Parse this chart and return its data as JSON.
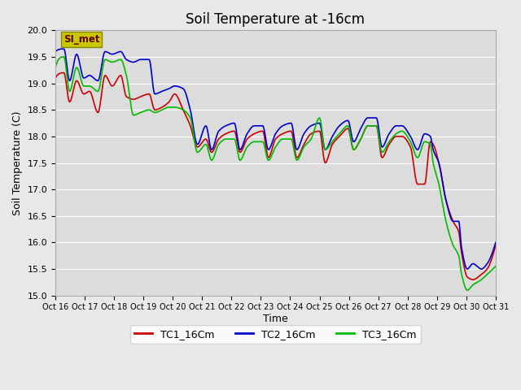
{
  "title": "Soil Temperature at -16cm",
  "ylabel": "Soil Temperature (C)",
  "xlabel": "Time",
  "ylim": [
    15.0,
    20.0
  ],
  "yticks": [
    15.0,
    15.5,
    16.0,
    16.5,
    17.0,
    17.5,
    18.0,
    18.5,
    19.0,
    19.5,
    20.0
  ],
  "xtick_labels": [
    "Oct 16",
    "Oct 17",
    "Oct 18",
    "Oct 19",
    "Oct 20",
    "Oct 21",
    "Oct 22",
    "Oct 23",
    "Oct 24",
    "Oct 25",
    "Oct 26",
    "Oct 27",
    "Oct 28",
    "Oct 29",
    "Oct 30",
    "Oct 31"
  ],
  "fig_bg_color": "#e8e8e8",
  "plot_bg_color": "#dcdcdc",
  "grid_color": "#ffffff",
  "line_colors": [
    "#cc0000",
    "#0000cc",
    "#00bb00"
  ],
  "line_labels": [
    "TC1_16Cm",
    "TC2_16Cm",
    "TC3_16Cm"
  ],
  "legend_label": "SI_met",
  "legend_bg": "#c8c800",
  "legend_text_color": "#660000",
  "title_fontsize": 12,
  "axis_fontsize": 9,
  "tick_fontsize": 8,
  "linewidth": 1.2
}
